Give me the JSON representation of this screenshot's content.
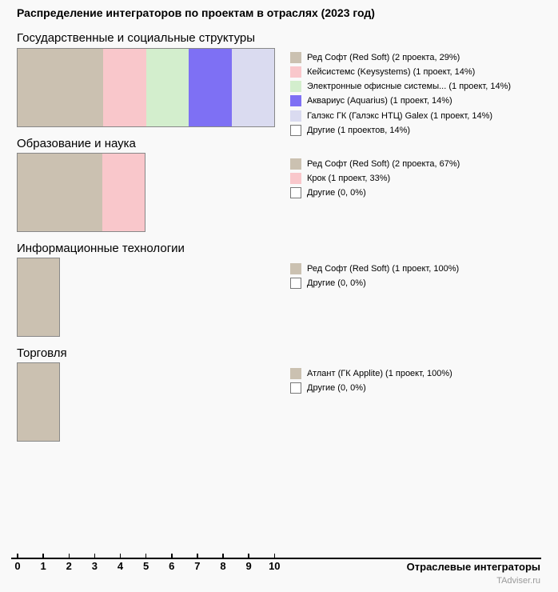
{
  "page_title": "Распределение интеграторов по проектам в отраслях (2023 год)",
  "colors": {
    "background": "#f9f9f9",
    "bar_border": "#888888",
    "red_soft": "#cbc1b1",
    "keysystems": "#f9c7cb",
    "eos": "#d3eecd",
    "aquarius": "#7e70f4",
    "galex": "#dadbf0",
    "others_swatch": "#ffffff",
    "watermark_text": "#999999"
  },
  "chart_data": {
    "type": "bar",
    "orientation": "horizontal-stacked",
    "units": "projects",
    "xlim": [
      0,
      10
    ],
    "axis_ticks": [
      "0",
      "1",
      "2",
      "3",
      "4",
      "5",
      "6",
      "7",
      "8",
      "9",
      "10"
    ],
    "xlabel": "Отраслевые интеграторы",
    "watermark": "TAdviser.ru",
    "charts": [
      {
        "title": "Государственные и социальные структуры",
        "series": [
          {
            "name": "Ред Софт (Red Soft)",
            "projects": 2,
            "percent": 29,
            "color": "#cbc1b1",
            "in_bar": true,
            "label": "Ред Софт (Red Soft) (2 проекта, 29%)"
          },
          {
            "name": "Кейсистемс (Keysystems)",
            "projects": 1,
            "percent": 14,
            "color": "#f9c7cb",
            "in_bar": true,
            "label": "Кейсистемс (Keysystems) (1 проект, 14%)"
          },
          {
            "name": "Электронные офисные системы...",
            "projects": 1,
            "percent": 14,
            "color": "#d3eecd",
            "in_bar": true,
            "label": "Электронные офисные системы... (1 проект, 14%)"
          },
          {
            "name": "Аквариус (Aquarius)",
            "projects": 1,
            "percent": 14,
            "color": "#7e70f4",
            "in_bar": true,
            "label": "Аквариус (Aquarius) (1 проект, 14%)"
          },
          {
            "name": "Галэкс ГК (Галэкс НТЦ) Galex",
            "projects": 1,
            "percent": 14,
            "color": "#dadbf0",
            "in_bar": true,
            "label": "Галэкс ГК (Галэкс НТЦ) Galex (1 проект, 14%)"
          },
          {
            "name": "Другие",
            "projects": 1,
            "percent": 14,
            "color": "#ffffff",
            "in_bar": false,
            "label": "Другие (1 проектов, 14%)"
          }
        ]
      },
      {
        "title": "Образование и наука",
        "series": [
          {
            "name": "Ред Софт (Red Soft)",
            "projects": 2,
            "percent": 67,
            "color": "#cbc1b1",
            "in_bar": true,
            "label": "Ред Софт (Red Soft) (2 проекта, 67%)"
          },
          {
            "name": "Крок",
            "projects": 1,
            "percent": 33,
            "color": "#f9c7cb",
            "in_bar": true,
            "label": "Крок (1 проект, 33%)"
          },
          {
            "name": "Другие",
            "projects": 0,
            "percent": 0,
            "color": "#ffffff",
            "in_bar": false,
            "label": "Другие (0, 0%)"
          }
        ]
      },
      {
        "title": "Информационные технологии",
        "series": [
          {
            "name": "Ред Софт (Red Soft)",
            "projects": 1,
            "percent": 100,
            "color": "#cbc1b1",
            "in_bar": true,
            "label": "Ред Софт (Red Soft) (1 проект, 100%)"
          },
          {
            "name": "Другие",
            "projects": 0,
            "percent": 0,
            "color": "#ffffff",
            "in_bar": false,
            "label": "Другие (0, 0%)"
          }
        ]
      },
      {
        "title": "Торговля",
        "series": [
          {
            "name": "Атлант (ГК Applite)",
            "projects": 1,
            "percent": 100,
            "color": "#cbc1b1",
            "in_bar": true,
            "label": "Атлант (ГК Applite) (1 проект, 100%)"
          },
          {
            "name": "Другие",
            "projects": 0,
            "percent": 0,
            "color": "#ffffff",
            "in_bar": false,
            "label": "Другие (0, 0%)"
          }
        ]
      }
    ]
  }
}
